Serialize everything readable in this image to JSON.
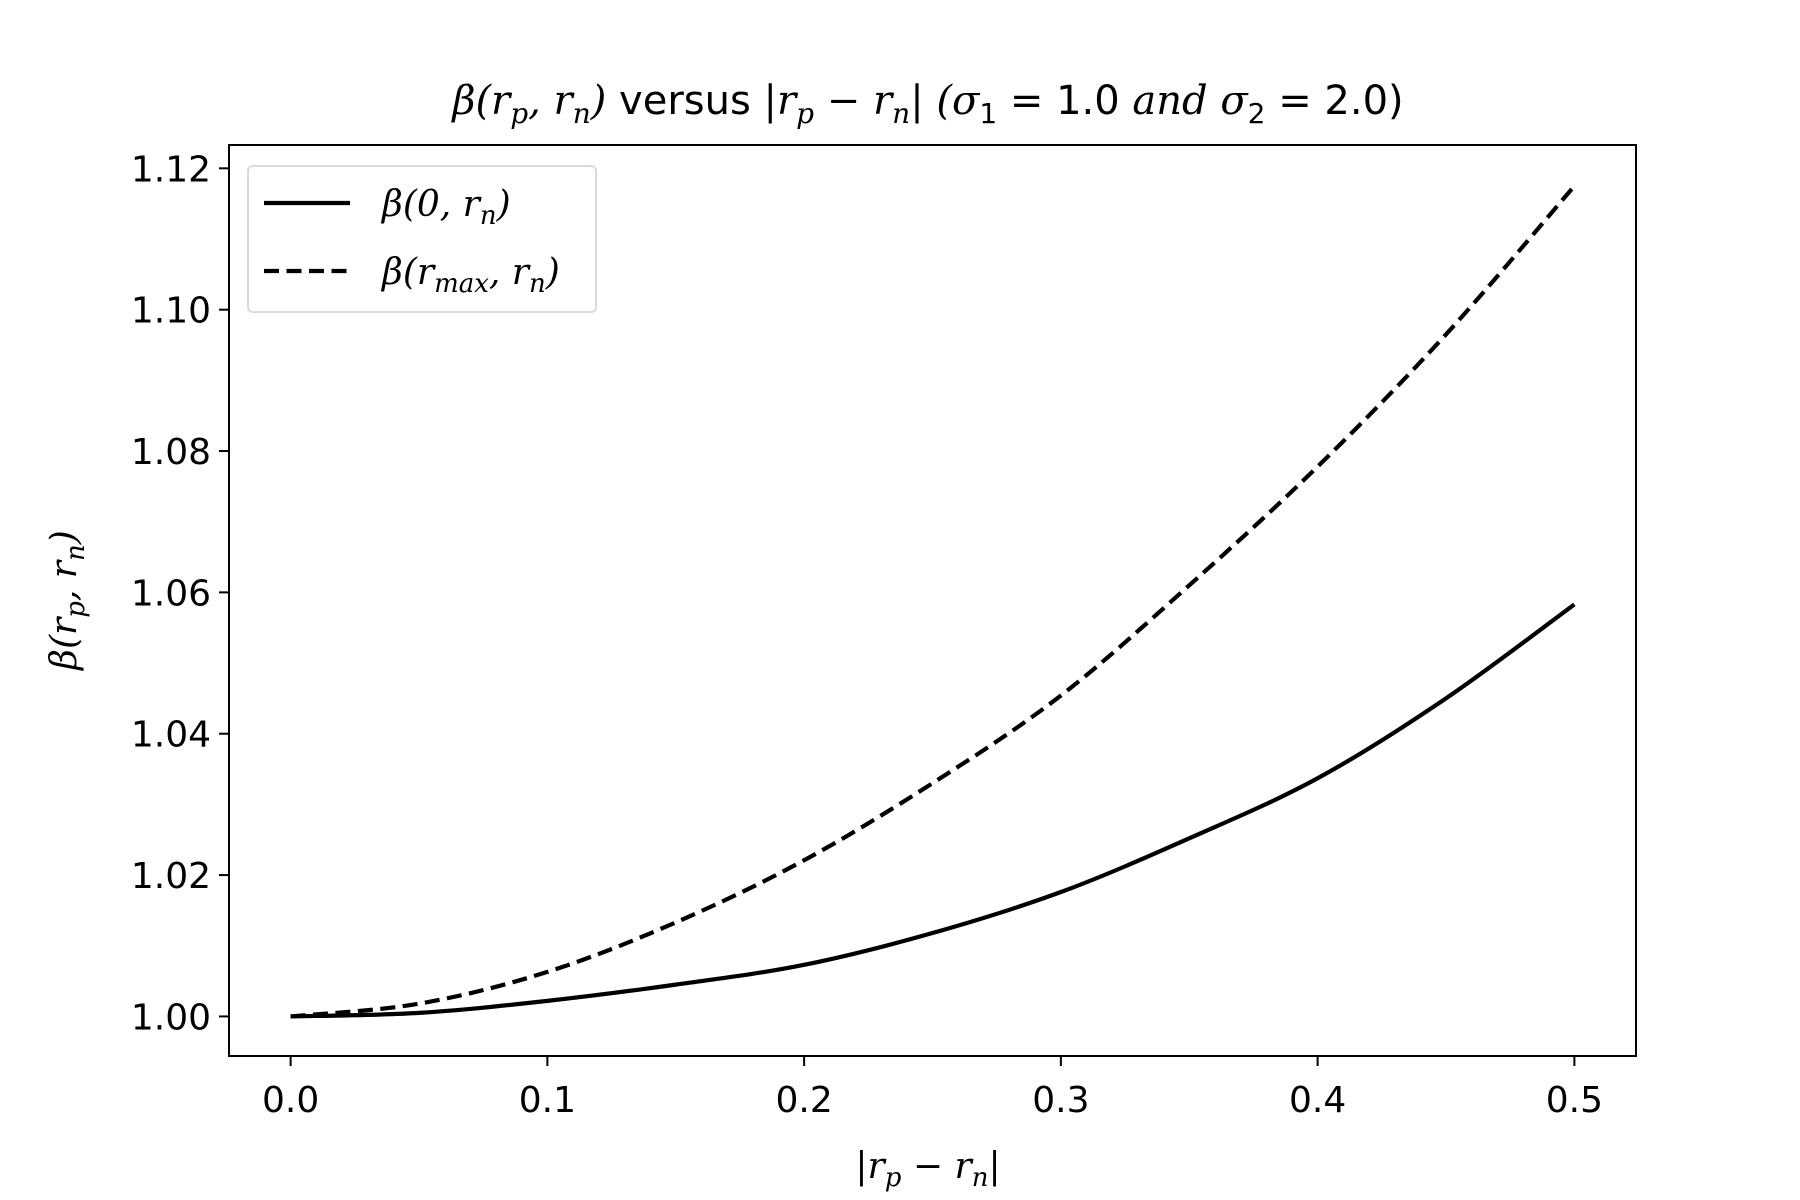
{
  "chart_data": {
    "type": "line",
    "title": {
      "beta": "β",
      "args": "(r",
      "sub_p": "p",
      "comma_r": ", r",
      "sub_n": "n",
      "close": ")",
      "versus": " versus ",
      "bar_r": "|r",
      "minus_r": " − r",
      "bar_close": "|",
      "open_sigma": " (σ",
      "sub_1": "1",
      "eq_1": " = 1.0",
      "and_sigma": " and σ",
      "sub_2": "2",
      "eq_2": " = 2.0)"
    },
    "xlabel": {
      "bar_r": "|r",
      "sub_p": "p",
      "minus_r": " − r",
      "sub_n": "n",
      "bar_close": "|"
    },
    "ylabel": {
      "beta": "β",
      "args": "(r",
      "sub_p": "p",
      "comma_r": ", r",
      "sub_n": "n",
      "close": ")"
    },
    "xlim": [
      -0.024,
      0.524
    ],
    "ylim": [
      0.9944,
      1.1233
    ],
    "xticks": [
      0.0,
      0.1,
      0.2,
      0.3,
      0.4,
      0.5
    ],
    "xtick_labels": [
      "0.0",
      "0.1",
      "0.2",
      "0.3",
      "0.4",
      "0.5"
    ],
    "yticks": [
      1.0,
      1.02,
      1.04,
      1.06,
      1.08,
      1.1,
      1.12
    ],
    "ytick_labels": [
      "1.00",
      "1.02",
      "1.04",
      "1.06",
      "1.08",
      "1.10",
      "1.12"
    ],
    "grid": false,
    "legend_position": "top-left",
    "x": [
      0.0,
      0.05,
      0.1,
      0.15,
      0.2,
      0.25,
      0.3,
      0.35,
      0.4,
      0.45,
      0.5
    ],
    "series": [
      {
        "name": "β(0, r_n)",
        "legend": {
          "beta": "β",
          "args": "(0, r",
          "sub": "n",
          "close": ")"
        },
        "style": "solid",
        "color": "#000000",
        "values": [
          1.0,
          1.0005,
          1.0022,
          1.0045,
          1.0073,
          1.0118,
          1.0176,
          1.0252,
          1.0337,
          1.045,
          1.0583
        ]
      },
      {
        "name": "β(r_max, r_n)",
        "legend": {
          "beta": "β",
          "args": "(r",
          "sub": "max",
          "comma_r": ", r",
          "sub2": "n",
          "close": ")"
        },
        "style": "dashed",
        "color": "#000000",
        "values": [
          1.0,
          1.0018,
          1.0063,
          1.0133,
          1.0221,
          1.033,
          1.0454,
          1.061,
          1.0778,
          1.0965,
          1.1175
        ]
      }
    ]
  }
}
